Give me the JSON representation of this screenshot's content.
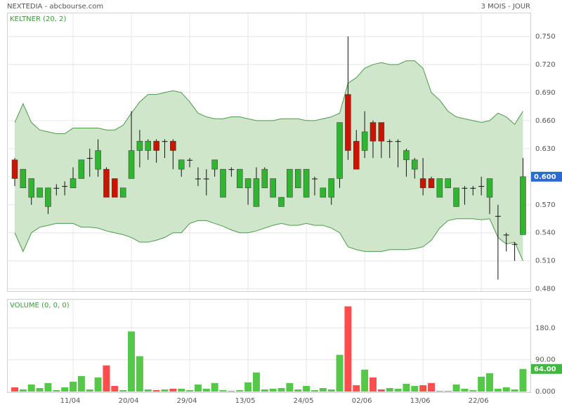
{
  "chart_data": [
    {
      "type": "candlestick",
      "title": "NEXTEDIA - abcbourse.com",
      "period": "3 MOIS - JOUR",
      "indicator": "KELTNER (20, 2)",
      "categories": [
        null,
        null,
        null,
        null,
        null,
        null,
        null,
        "11/04",
        null,
        null,
        null,
        null,
        null,
        null,
        "20/04",
        null,
        null,
        null,
        null,
        null,
        null,
        "29/04",
        null,
        null,
        null,
        null,
        null,
        null,
        "13/05",
        null,
        null,
        null,
        null,
        null,
        null,
        "24/05",
        null,
        null,
        null,
        null,
        null,
        null,
        "02/06",
        null,
        null,
        null,
        null,
        null,
        null,
        "13/06",
        null,
        null,
        null,
        null,
        null,
        null,
        "22/06",
        null,
        null,
        null,
        null,
        null
      ],
      "open": [
        0.618,
        0.588,
        0.578,
        0.578,
        0.568,
        0.588,
        0.59,
        0.588,
        0.598,
        0.62,
        0.608,
        0.608,
        0.598,
        0.578,
        0.598,
        0.628,
        0.628,
        0.638,
        0.638,
        0.638,
        0.608,
        0.618,
        0.598,
        0.598,
        0.608,
        0.578,
        0.608,
        0.588,
        0.588,
        0.568,
        0.588,
        0.578,
        0.568,
        0.578,
        0.588,
        0.578,
        0.598,
        0.578,
        0.578,
        0.598,
        0.688,
        0.638,
        0.628,
        0.658,
        0.658,
        0.638,
        0.638,
        0.618,
        0.608,
        0.598,
        0.598,
        0.578,
        0.588,
        0.568,
        0.588,
        0.588,
        0.59,
        0.578,
        0.558,
        0.538,
        0.528,
        0.538
      ],
      "high": [
        0.62,
        0.608,
        0.598,
        0.588,
        0.588,
        0.592,
        0.595,
        0.61,
        0.618,
        0.63,
        0.64,
        0.61,
        0.598,
        0.588,
        0.67,
        0.65,
        0.64,
        0.64,
        0.64,
        0.64,
        0.618,
        0.62,
        0.61,
        0.608,
        0.618,
        0.608,
        0.61,
        0.608,
        0.598,
        0.61,
        0.61,
        0.598,
        0.578,
        0.608,
        0.608,
        0.608,
        0.6,
        0.588,
        0.598,
        0.658,
        0.75,
        0.65,
        0.67,
        0.66,
        0.658,
        0.64,
        0.64,
        0.63,
        0.62,
        0.62,
        0.6,
        0.598,
        0.598,
        0.588,
        0.59,
        0.59,
        0.6,
        0.598,
        0.57,
        0.54,
        0.53,
        0.62
      ],
      "low": [
        0.59,
        0.588,
        0.57,
        0.578,
        0.56,
        0.58,
        0.58,
        0.588,
        0.598,
        0.6,
        0.6,
        0.578,
        0.578,
        0.578,
        0.598,
        0.61,
        0.618,
        0.615,
        0.62,
        0.608,
        0.6,
        0.61,
        0.59,
        0.58,
        0.6,
        0.578,
        0.6,
        0.588,
        0.57,
        0.568,
        0.588,
        0.578,
        0.568,
        0.578,
        0.588,
        0.578,
        0.58,
        0.578,
        0.57,
        0.588,
        0.618,
        0.608,
        0.62,
        0.62,
        0.62,
        0.62,
        0.61,
        0.6,
        0.598,
        0.58,
        0.588,
        0.578,
        0.588,
        0.568,
        0.57,
        0.58,
        0.58,
        0.56,
        0.49,
        0.52,
        0.51,
        0.538
      ],
      "close": [
        0.598,
        0.608,
        0.598,
        0.588,
        0.588,
        0.588,
        0.59,
        0.598,
        0.618,
        0.62,
        0.628,
        0.578,
        0.578,
        0.588,
        0.628,
        0.638,
        0.638,
        0.628,
        0.638,
        0.628,
        0.618,
        0.618,
        0.598,
        0.598,
        0.618,
        0.608,
        0.608,
        0.608,
        0.598,
        0.598,
        0.608,
        0.598,
        0.578,
        0.608,
        0.608,
        0.608,
        0.598,
        0.588,
        0.598,
        0.658,
        0.628,
        0.608,
        0.648,
        0.638,
        0.638,
        0.638,
        0.638,
        0.628,
        0.618,
        0.588,
        0.588,
        0.598,
        0.598,
        0.588,
        0.588,
        0.588,
        0.59,
        0.598,
        0.558,
        0.538,
        0.528,
        0.6
      ],
      "keltner_upper": [
        0.658,
        0.678,
        0.658,
        0.65,
        0.648,
        0.646,
        0.646,
        0.652,
        0.652,
        0.652,
        0.652,
        0.65,
        0.65,
        0.655,
        0.668,
        0.68,
        0.688,
        0.688,
        0.69,
        0.692,
        0.69,
        0.68,
        0.668,
        0.664,
        0.662,
        0.662,
        0.664,
        0.664,
        0.662,
        0.66,
        0.66,
        0.66,
        0.662,
        0.662,
        0.662,
        0.66,
        0.66,
        0.662,
        0.664,
        0.668,
        0.7,
        0.706,
        0.716,
        0.72,
        0.722,
        0.72,
        0.72,
        0.724,
        0.724,
        0.716,
        0.69,
        0.682,
        0.67,
        0.664,
        0.662,
        0.66,
        0.658,
        0.66,
        0.668,
        0.664,
        0.656,
        0.67
      ],
      "keltner_lower": [
        0.54,
        0.52,
        0.54,
        0.546,
        0.548,
        0.55,
        0.55,
        0.55,
        0.546,
        0.546,
        0.545,
        0.542,
        0.54,
        0.538,
        0.535,
        0.53,
        0.53,
        0.532,
        0.535,
        0.54,
        0.54,
        0.55,
        0.553,
        0.553,
        0.55,
        0.547,
        0.543,
        0.54,
        0.54,
        0.542,
        0.545,
        0.548,
        0.55,
        0.548,
        0.548,
        0.55,
        0.548,
        0.548,
        0.545,
        0.54,
        0.525,
        0.522,
        0.52,
        0.52,
        0.52,
        0.522,
        0.522,
        0.522,
        0.523,
        0.525,
        0.532,
        0.545,
        0.553,
        0.555,
        0.555,
        0.555,
        0.554,
        0.555,
        0.535,
        0.528,
        0.53,
        0.51
      ],
      "up_color": "#2fb52f",
      "down_color": "#c81400",
      "band_color": "#cfe6cb",
      "band_line_color": "#4c9a4c",
      "last_label": "0.600",
      "last_label_color": "#2a6ad6",
      "ylim": [
        0.4775,
        0.7755
      ],
      "yticks": [
        {
          "value": 0.48,
          "label": "0.480"
        },
        {
          "value": 0.51,
          "label": "0.510"
        },
        {
          "value": 0.54,
          "label": "0.540"
        },
        {
          "value": 0.57,
          "label": "0.570"
        },
        {
          "value": 0.6,
          "label": "0.600"
        },
        {
          "value": 0.63,
          "label": "0.630"
        },
        {
          "value": 0.66,
          "label": "0.660"
        },
        {
          "value": 0.69,
          "label": "0.690"
        },
        {
          "value": 0.72,
          "label": "0.720"
        },
        {
          "value": 0.75,
          "label": "0.750"
        }
      ],
      "grid": true
    },
    {
      "type": "bar",
      "title": "VOLUME (0, 0, 0)",
      "values": [
        12,
        6,
        20,
        10,
        24,
        4,
        12,
        28,
        44,
        6,
        40,
        74,
        16,
        4,
        170,
        100,
        6,
        4,
        6,
        8,
        8,
        4,
        20,
        8,
        24,
        4,
        2,
        4,
        26,
        54,
        6,
        8,
        10,
        24,
        6,
        16,
        4,
        10,
        6,
        104,
        241,
        18,
        62,
        40,
        6,
        10,
        8,
        22,
        16,
        18,
        24,
        2,
        2,
        20,
        8,
        4,
        42,
        52,
        8,
        12,
        6,
        64
      ],
      "up_color": "#55c84a",
      "down_color": "#ff4d4d",
      "last_label": "64.00",
      "last_label_color": "#3fb83f",
      "ylim": [
        0,
        260
      ],
      "yticks": [
        {
          "value": 0,
          "label": "0.000"
        },
        {
          "value": 90,
          "label": "90.00"
        },
        {
          "value": 180,
          "label": "180.0"
        }
      ],
      "grid": true
    }
  ]
}
